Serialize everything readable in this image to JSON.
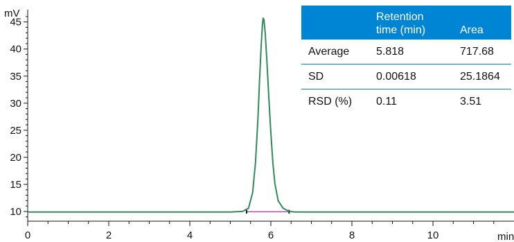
{
  "chart_data": {
    "type": "line",
    "y_unit": "mV",
    "x_unit": "min",
    "xlim": [
      0,
      12
    ],
    "ylim": [
      8.2,
      46.5
    ],
    "x_ticks": [
      0,
      2,
      4,
      6,
      8,
      10
    ],
    "y_ticks": [
      10,
      15,
      20,
      25,
      30,
      35,
      40,
      45
    ],
    "grid": false,
    "series": [
      {
        "color": "#2e8b57",
        "x": [
          0,
          1,
          2,
          3,
          4,
          5,
          5.3,
          5.45,
          5.55,
          5.62,
          5.68,
          5.72,
          5.76,
          5.79,
          5.81,
          5.83,
          5.86,
          5.9,
          5.95,
          6.0,
          6.05,
          6.1,
          6.18,
          6.3,
          6.45,
          6.6,
          7,
          8,
          9,
          10,
          11,
          12
        ],
        "y": [
          9.9,
          9.9,
          9.9,
          9.9,
          9.9,
          9.9,
          10.0,
          10.6,
          13.5,
          19.0,
          27.0,
          34.0,
          40.5,
          44.3,
          45.7,
          45.4,
          43.0,
          38.0,
          31.0,
          24.5,
          19.0,
          15.2,
          12.0,
          10.6,
          10.0,
          9.9,
          9.9,
          9.9,
          9.9,
          9.9,
          9.9,
          9.9
        ]
      }
    ],
    "baseline": {
      "color": "#c040c0",
      "x": [
        5.4,
        6.45
      ],
      "y": [
        9.95,
        9.95
      ]
    }
  },
  "table": {
    "headers": [
      "",
      "Retention\ntime (min)",
      "Area"
    ],
    "rows": [
      [
        "Average",
        "5.818",
        "717.68"
      ],
      [
        "SD",
        "0.00618",
        "25.1864"
      ],
      [
        "RSD (%)",
        "0.11",
        "3.51"
      ]
    ],
    "header_color": "#0085d5"
  }
}
